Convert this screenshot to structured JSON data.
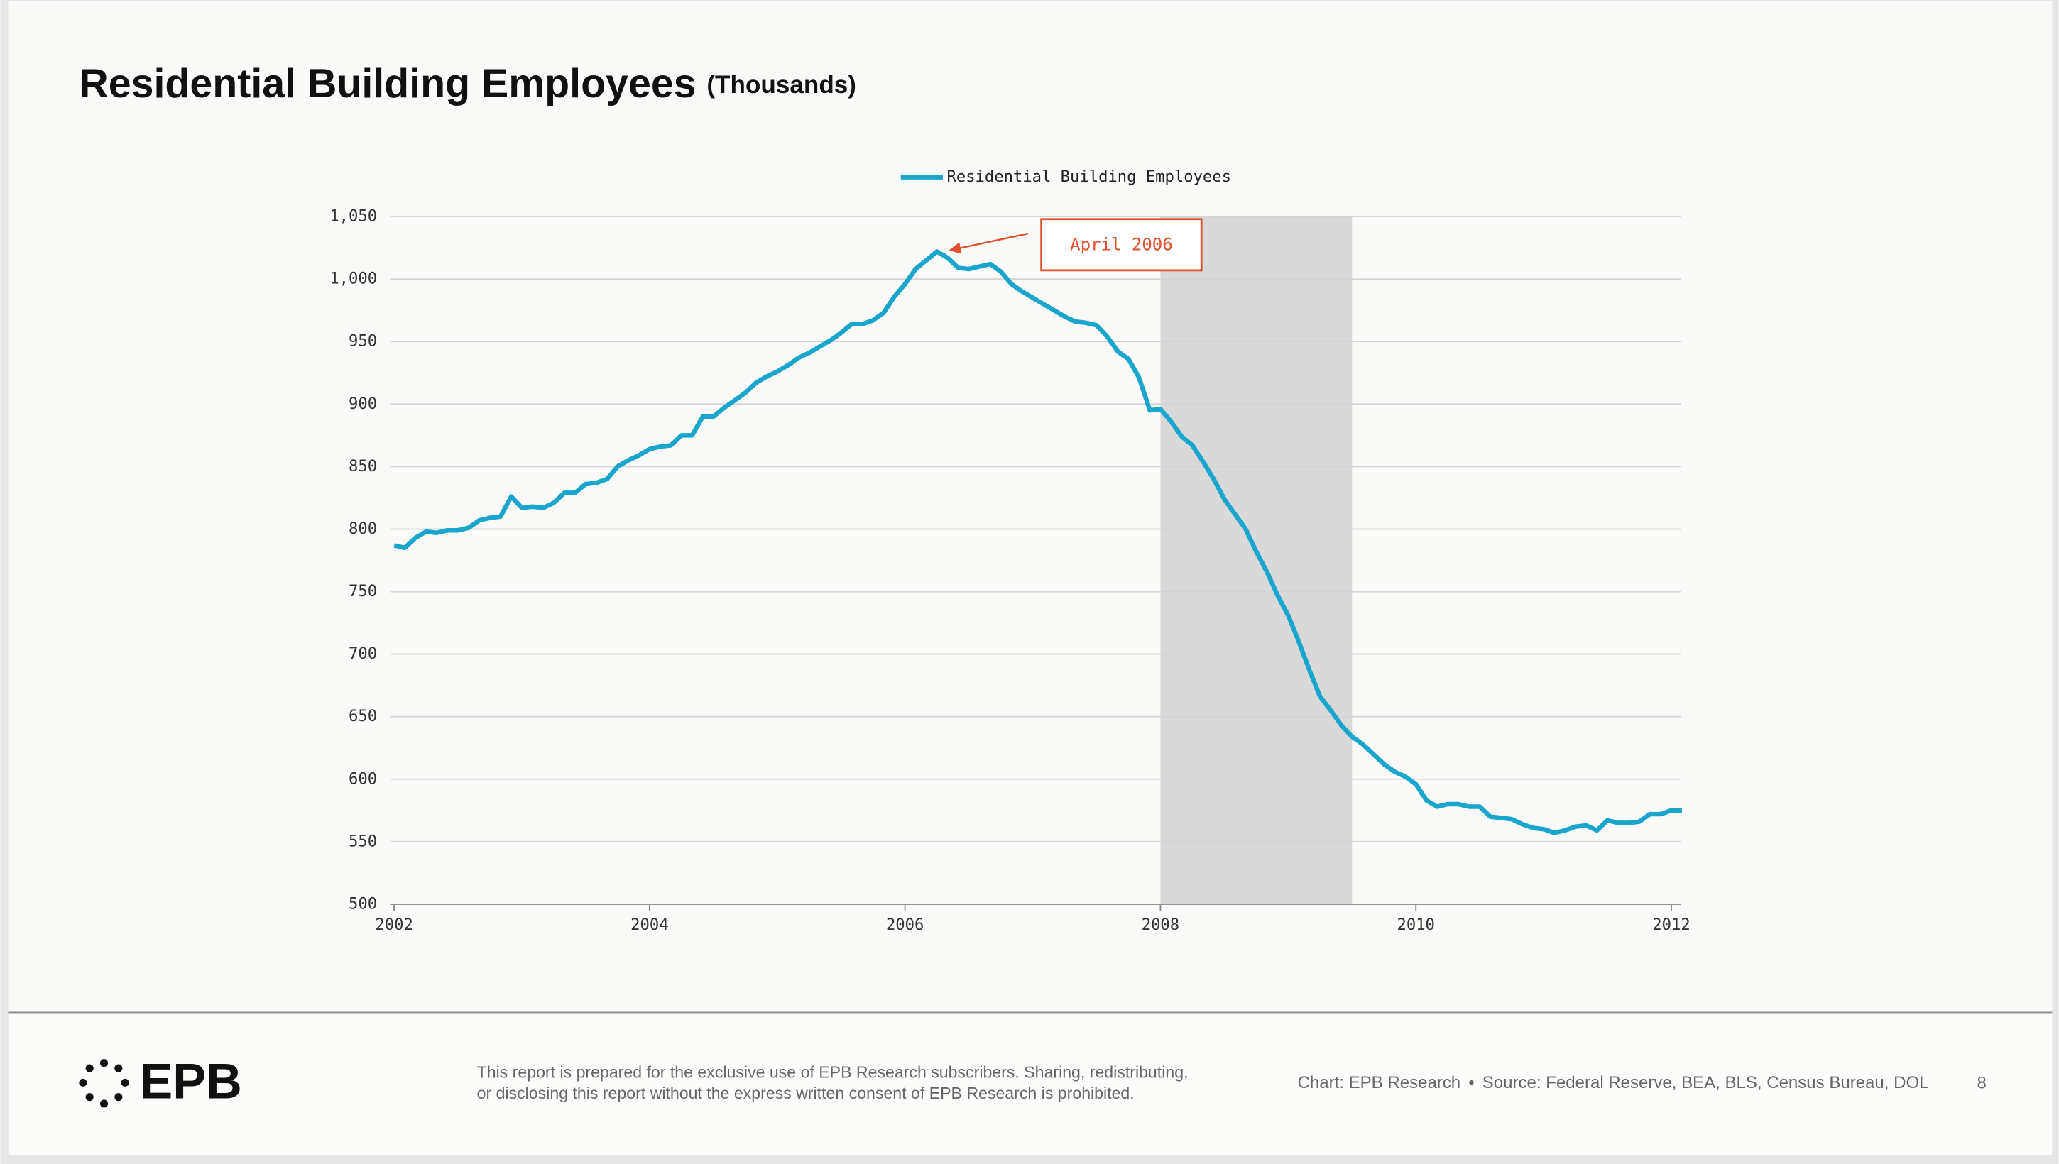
{
  "chart_data": {
    "type": "line",
    "title": "Residential Building Employees",
    "subtitle": "(Thousands)",
    "x": [
      2002,
      2002.083,
      2002.167,
      2002.25,
      2002.333,
      2002.417,
      2002.5,
      2002.583,
      2002.667,
      2002.75,
      2002.833,
      2002.917,
      2003,
      2003.083,
      2003.167,
      2003.25,
      2003.333,
      2003.417,
      2003.5,
      2003.583,
      2003.667,
      2003.75,
      2003.833,
      2003.917,
      2004,
      2004.083,
      2004.167,
      2004.25,
      2004.333,
      2004.417,
      2004.5,
      2004.583,
      2004.667,
      2004.75,
      2004.833,
      2004.917,
      2005,
      2005.083,
      2005.167,
      2005.25,
      2005.333,
      2005.417,
      2005.5,
      2005.583,
      2005.667,
      2005.75,
      2005.833,
      2005.917,
      2006,
      2006.083,
      2006.167,
      2006.25,
      2006.333,
      2006.417,
      2006.5,
      2006.583,
      2006.667,
      2006.75,
      2006.833,
      2006.917,
      2007,
      2007.083,
      2007.167,
      2007.25,
      2007.333,
      2007.417,
      2007.5,
      2007.583,
      2007.667,
      2007.75,
      2007.833,
      2007.917,
      2008,
      2008.083,
      2008.167,
      2008.25,
      2008.333,
      2008.417,
      2008.5,
      2008.583,
      2008.667,
      2008.75,
      2008.833,
      2008.917,
      2009,
      2009.083,
      2009.167,
      2009.25,
      2009.333,
      2009.417,
      2009.5,
      2009.583,
      2009.667,
      2009.75,
      2009.833,
      2009.917,
      2010,
      2010.083,
      2010.167,
      2010.25,
      2010.333,
      2010.417,
      2010.5,
      2010.583,
      2010.667,
      2010.75,
      2010.833,
      2010.917,
      2011,
      2011.083,
      2011.167,
      2011.25,
      2011.333,
      2011.417,
      2011.5,
      2011.583,
      2011.667,
      2011.75,
      2011.833,
      2011.917,
      2012,
      2012.083
    ],
    "series": [
      {
        "name": "Residential Building Employees",
        "color": "#1aa6cc",
        "values": [
          787,
          785,
          793,
          798,
          797,
          799,
          799,
          801,
          807,
          809,
          810,
          826,
          817,
          818,
          817,
          821,
          829,
          829,
          836,
          837,
          840,
          850,
          855,
          859,
          864,
          866,
          867,
          875,
          875,
          890,
          890,
          897,
          903,
          909,
          917,
          922,
          926,
          931,
          937,
          941,
          946,
          951,
          957,
          964,
          964,
          967,
          973,
          986,
          996,
          1008,
          1015,
          1022,
          1017,
          1009,
          1008,
          1010,
          1012,
          1006,
          996,
          990,
          985,
          980,
          975,
          970,
          966,
          965,
          963,
          954,
          942,
          936,
          921,
          895,
          896,
          886,
          874,
          867,
          854,
          840,
          824,
          812,
          800,
          782,
          766,
          747,
          731,
          710,
          687,
          666,
          655,
          643,
          634,
          628,
          620,
          612,
          606,
          602,
          596,
          583,
          578,
          580,
          580,
          578,
          578,
          570,
          569,
          568,
          564,
          561,
          560,
          557,
          559,
          562,
          563,
          559,
          567,
          565,
          565,
          566,
          572,
          572,
          575,
          575
        ]
      }
    ],
    "xlim": [
      2002,
      2012.083
    ],
    "xticks": [
      2002,
      2004,
      2006,
      2008,
      2010,
      2012
    ],
    "ylim": [
      500,
      1050
    ],
    "yticks": [
      500,
      550,
      600,
      650,
      700,
      750,
      800,
      850,
      900,
      950,
      {
        "value": 1000,
        "label": "1,000"
      },
      {
        "value": 1050,
        "label": "1,050"
      }
    ],
    "grid": true,
    "legend": "top",
    "shaded_regions": [
      {
        "start": 2008,
        "end": 2009.5,
        "color": "#d9d9d9"
      }
    ],
    "annotations": [
      {
        "text": "April 2006",
        "x": 2006.25,
        "y": 1022,
        "color": "#e0502a"
      }
    ]
  },
  "footer": {
    "logo": "EPB",
    "disclaimer": [
      "This report is prepared for the exclusive use of EPB Research subscribers. Sharing, redistributing,",
      "or disclosing this report without the express written consent of EPB Research is prohibited."
    ],
    "credit": "Chart: EPB Research",
    "source": "Source: Federal Reserve, BEA, BLS, Census Bureau, DOL",
    "page": "8"
  }
}
